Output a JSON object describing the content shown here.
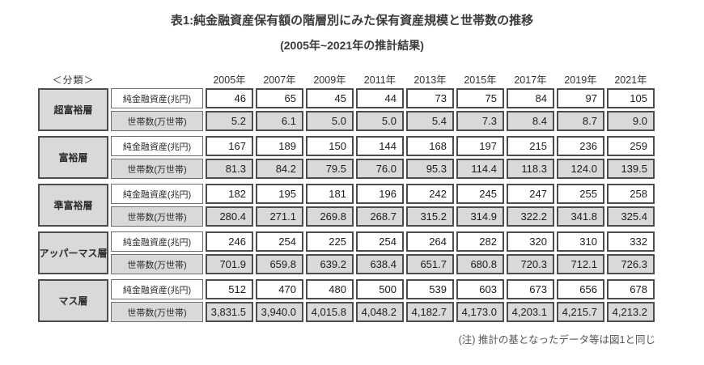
{
  "figure": {
    "title": "表1:純金融資産保有額の階層別にみた保有資産規模と世帯数の推移",
    "subtitle": "(2005年~2021年の推計結果)",
    "note": "(注) 推計の基となったデータ等は図1と同じ"
  },
  "colors": {
    "cell_gray": "#d9d9d9",
    "border_dark": "#4d4d4d",
    "border_thin": "#6e6e6e",
    "text": "#2b2b2b",
    "note_text": "#555555",
    "background": "#ffffff"
  },
  "chart_data": {
    "type": "table",
    "title": "表1:純金融資産保有額の階層別にみた保有資産規模と世帯数の推移",
    "subtitle": "(2005年~2021年の推計結果)",
    "classification_label": "＜分類＞",
    "years": [
      "2005年",
      "2007年",
      "2009年",
      "2011年",
      "2013年",
      "2015年",
      "2017年",
      "2019年",
      "2021年"
    ],
    "row_labels": {
      "assets": "純金融資産(兆円)",
      "households": "世帯数(万世帯)"
    },
    "tiers": [
      {
        "name": "超富裕層",
        "assets": [
          "46",
          "65",
          "45",
          "44",
          "73",
          "75",
          "84",
          "97",
          "105"
        ],
        "households": [
          "5.2",
          "6.1",
          "5.0",
          "5.0",
          "5.4",
          "7.3",
          "8.4",
          "8.7",
          "9.0"
        ]
      },
      {
        "name": "富裕層",
        "assets": [
          "167",
          "189",
          "150",
          "144",
          "168",
          "197",
          "215",
          "236",
          "259"
        ],
        "households": [
          "81.3",
          "84.2",
          "79.5",
          "76.0",
          "95.3",
          "114.4",
          "118.3",
          "124.0",
          "139.5"
        ]
      },
      {
        "name": "準富裕層",
        "assets": [
          "182",
          "195",
          "181",
          "196",
          "242",
          "245",
          "247",
          "255",
          "258"
        ],
        "households": [
          "280.4",
          "271.1",
          "269.8",
          "268.7",
          "315.2",
          "314.9",
          "322.2",
          "341.8",
          "325.4"
        ]
      },
      {
        "name": "アッパーマス層",
        "assets": [
          "246",
          "254",
          "225",
          "254",
          "264",
          "282",
          "320",
          "310",
          "332"
        ],
        "households": [
          "701.9",
          "659.8",
          "639.2",
          "638.4",
          "651.7",
          "680.8",
          "720.3",
          "712.1",
          "726.3"
        ]
      },
      {
        "name": "マス層",
        "assets": [
          "512",
          "470",
          "480",
          "500",
          "539",
          "603",
          "673",
          "656",
          "678"
        ],
        "households": [
          "3,831.5",
          "3,940.0",
          "4,015.8",
          "4,048.2",
          "4,182.7",
          "4,173.0",
          "4,203.1",
          "4,215.7",
          "4,213.2"
        ]
      }
    ],
    "note": "(注) 推計の基となったデータ等は図1と同じ"
  }
}
